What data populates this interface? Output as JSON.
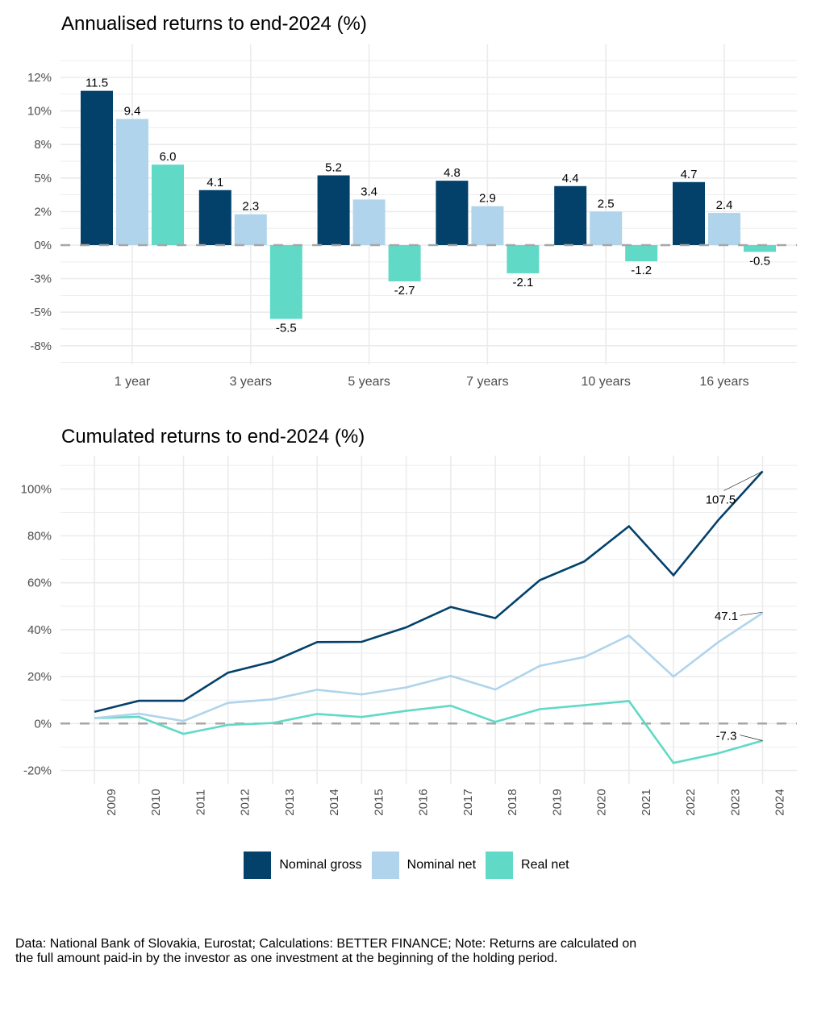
{
  "colors": {
    "nominal_gross": "#03416b",
    "nominal_net": "#b0d4eb",
    "real_net": "#60d9c6",
    "grid": "#ebebeb",
    "zero_line": "#a6a6a6",
    "axis_text": "#4d4d4d"
  },
  "legend": [
    {
      "key": "nominal_gross",
      "label": "Nominal gross"
    },
    {
      "key": "nominal_net",
      "label": "Nominal net"
    },
    {
      "key": "real_net",
      "label": "Real net"
    }
  ],
  "footnote": "Data: National Bank of Slovakia, Eurostat; Calculations: BETTER FINANCE; Note: Returns are calculated on the full amount paid-in by the investor as one investment at the beginning of the holding period.",
  "chart_data": [
    {
      "type": "bar",
      "title": "Annualised returns to end-2024 (%)",
      "xlabel": "",
      "ylabel": "",
      "categories": [
        "1 year",
        "3 years",
        "5 years",
        "7 years",
        "10 years",
        "16 years"
      ],
      "series": [
        {
          "name": "Nominal gross",
          "key": "nominal_gross",
          "values": [
            11.5,
            4.1,
            5.2,
            4.8,
            4.4,
            4.7
          ]
        },
        {
          "name": "Nominal net",
          "key": "nominal_net",
          "values": [
            9.4,
            2.3,
            3.4,
            2.9,
            2.5,
            2.4
          ]
        },
        {
          "name": "Real net",
          "key": "real_net",
          "values": [
            6.0,
            -5.5,
            -2.7,
            -2.1,
            -1.2,
            -0.5
          ]
        }
      ],
      "yticks": [
        12.5,
        10,
        7.5,
        5,
        2.5,
        0,
        -2.5,
        -5,
        -7.5
      ],
      "ytick_labels": [
        "12%",
        "10%",
        "8%",
        "5%",
        "2%",
        "0%",
        "-3%",
        "-5%",
        "-8%"
      ],
      "ylim": [
        -9.5,
        15
      ],
      "grid": true,
      "reference_line": 0,
      "data_labels": true
    },
    {
      "type": "line",
      "title": "Cumulated returns to end-2024 (%)",
      "xlabel": "",
      "ylabel": "",
      "x": [
        "2009",
        "2010",
        "2011",
        "2012",
        "2013",
        "2014",
        "2015",
        "2016",
        "2017",
        "2018",
        "2019",
        "2020",
        "2021",
        "2022",
        "2023",
        "2024"
      ],
      "series": [
        {
          "name": "Nominal gross",
          "key": "nominal_gross",
          "values": [
            5.0,
            9.7,
            9.7,
            21.7,
            26.4,
            34.7,
            34.8,
            41.0,
            49.7,
            44.9,
            61.1,
            69.1,
            84.1,
            63.2,
            86.6,
            107.5
          ]
        },
        {
          "name": "Nominal net",
          "key": "nominal_net",
          "values": [
            2.3,
            4.2,
            1.1,
            8.8,
            10.3,
            14.4,
            12.4,
            15.4,
            20.3,
            14.5,
            24.6,
            28.3,
            37.5,
            20.0,
            34.6,
            47.1
          ]
        },
        {
          "name": "Real net",
          "key": "real_net",
          "values": [
            2.3,
            2.9,
            -4.4,
            -0.6,
            0.2,
            4.1,
            2.8,
            5.4,
            7.6,
            0.7,
            6.1,
            7.8,
            9.6,
            -16.8,
            -12.7,
            -7.3
          ]
        }
      ],
      "end_labels": [
        "107.5",
        "47.1",
        "-7.3"
      ],
      "yticks": [
        100,
        80,
        60,
        40,
        20,
        0,
        -20
      ],
      "ytick_labels": [
        "100%",
        "80%",
        "60%",
        "40%",
        "20%",
        "0%",
        "-20%"
      ],
      "ylim": [
        -25,
        115
      ],
      "grid": true,
      "reference_line": 0,
      "legend_position": "bottom"
    }
  ]
}
